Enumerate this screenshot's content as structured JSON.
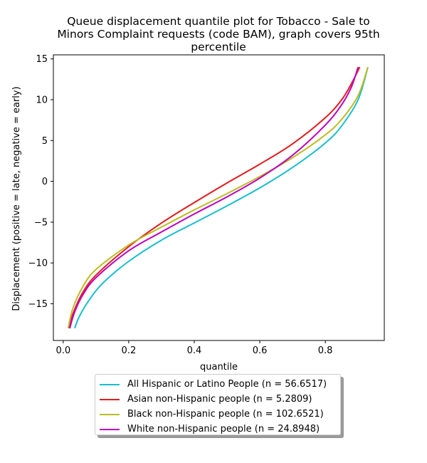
{
  "chart_data": {
    "type": "line",
    "title": "Queue displacement quantile plot for Tobacco - Sale to Minors Complaint  requests (code BAM), graph covers 95th percentile",
    "title_lines": [
      "Queue displacement quantile plot for Tobacco - Sale to",
      "Minors Complaint  requests (code BAM), graph covers 95th",
      "percentile"
    ],
    "xlabel": "quantile",
    "ylabel": "Displacement (positive = late, negative = early)",
    "xlim": [
      -0.03,
      0.98
    ],
    "ylim": [
      -19.5,
      15.5
    ],
    "xticks": [
      0.0,
      0.2,
      0.4,
      0.6,
      0.8
    ],
    "xtick_labels": [
      "0.0",
      "0.2",
      "0.4",
      "0.6",
      "0.8"
    ],
    "yticks": [
      -15,
      -10,
      -5,
      0,
      5,
      10,
      15
    ],
    "ytick_labels": [
      "−15",
      "−10",
      "−5",
      "0",
      "5",
      "10",
      "15"
    ],
    "grid": false,
    "legend_position": "below",
    "series": [
      {
        "name": "All Hispanic or Latino People (n = 56.6517)",
        "color": "#17becf",
        "x": [
          0.035,
          0.05,
          0.08,
          0.12,
          0.2,
          0.3,
          0.4,
          0.5,
          0.6,
          0.7,
          0.8,
          0.85,
          0.9,
          0.93
        ],
        "y": [
          -18.0,
          -16.5,
          -14.5,
          -12.5,
          -9.8,
          -7.2,
          -5.1,
          -3.0,
          -0.8,
          1.7,
          4.7,
          6.8,
          10.0,
          14.0
        ]
      },
      {
        "name": "Asian non-Hispanic people (n = 5.2809)",
        "color": "#e41a1c",
        "x": [
          0.018,
          0.03,
          0.06,
          0.1,
          0.2,
          0.3,
          0.4,
          0.5,
          0.6,
          0.7,
          0.8,
          0.85,
          0.88,
          0.905
        ],
        "y": [
          -18.0,
          -16.2,
          -13.6,
          -11.5,
          -8.0,
          -5.1,
          -2.6,
          -0.2,
          2.1,
          4.6,
          7.8,
          10.0,
          12.0,
          14.0
        ]
      },
      {
        "name": "Black non-Hispanic people (n = 102.6521)",
        "color": "#bcbd22",
        "x": [
          0.015,
          0.03,
          0.06,
          0.1,
          0.2,
          0.3,
          0.4,
          0.5,
          0.6,
          0.7,
          0.8,
          0.85,
          0.9,
          0.93
        ],
        "y": [
          -18.0,
          -15.5,
          -12.9,
          -10.8,
          -7.8,
          -5.6,
          -3.5,
          -1.5,
          0.6,
          2.9,
          5.7,
          7.6,
          10.5,
          14.0
        ]
      },
      {
        "name": "White non-Hispanic people (n = 24.8948)",
        "color": "#bf00bf",
        "x": [
          0.02,
          0.035,
          0.06,
          0.1,
          0.2,
          0.3,
          0.4,
          0.5,
          0.6,
          0.7,
          0.8,
          0.85,
          0.88,
          0.9
        ],
        "y": [
          -18.0,
          -16.0,
          -13.9,
          -11.8,
          -8.5,
          -6.2,
          -4.0,
          -1.9,
          0.4,
          3.2,
          6.9,
          9.4,
          11.6,
          14.0
        ]
      }
    ]
  }
}
